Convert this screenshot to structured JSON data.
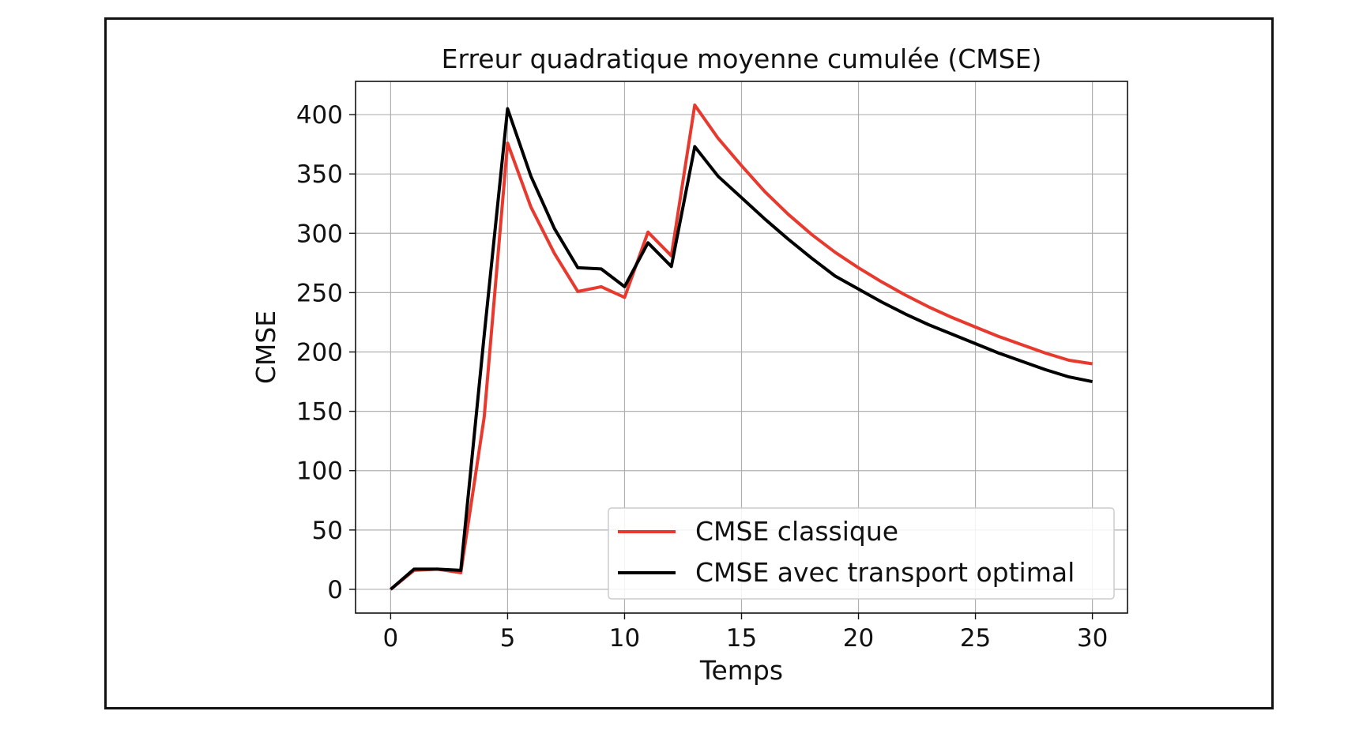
{
  "chart_data": {
    "type": "line",
    "title": "Erreur quadratique moyenne cumulée (CMSE)",
    "xlabel": "Temps",
    "ylabel": "CMSE",
    "xlim": [
      -1.5,
      31.5
    ],
    "ylim": [
      -20,
      428
    ],
    "x_ticks": [
      0,
      5,
      10,
      15,
      20,
      25,
      30
    ],
    "y_ticks": [
      0,
      50,
      100,
      150,
      200,
      250,
      300,
      350,
      400
    ],
    "x_tick_labels": [
      "0",
      "5",
      "10",
      "15",
      "20",
      "25",
      "30"
    ],
    "y_tick_labels": [
      "0",
      "50",
      "100",
      "150",
      "200",
      "250",
      "300",
      "350",
      "400"
    ],
    "grid": true,
    "legend_position": "bottom-right",
    "x": [
      0,
      1,
      2,
      3,
      4,
      5,
      6,
      7,
      8,
      9,
      10,
      11,
      12,
      13,
      14,
      15,
      16,
      17,
      18,
      19,
      20,
      21,
      22,
      23,
      24,
      25,
      26,
      27,
      28,
      29,
      30
    ],
    "series": [
      {
        "name": "CMSE classique",
        "color": "#e8392e",
        "values": [
          0,
          16,
          17,
          14,
          145,
          376,
          322,
          283,
          251,
          255,
          246,
          301,
          281,
          408,
          380,
          357,
          335,
          316,
          299,
          284,
          271,
          259,
          248,
          238,
          229,
          221,
          213,
          206,
          199,
          193,
          190
        ]
      },
      {
        "name": "CMSE avec transport optimal",
        "color": "#000000",
        "values": [
          0,
          17,
          17,
          16,
          214,
          405,
          348,
          304,
          271,
          270,
          255,
          292,
          272,
          373,
          348,
          330,
          312,
          295,
          279,
          264,
          253,
          242,
          232,
          223,
          215,
          207,
          199,
          192,
          185,
          179,
          175
        ]
      }
    ]
  }
}
